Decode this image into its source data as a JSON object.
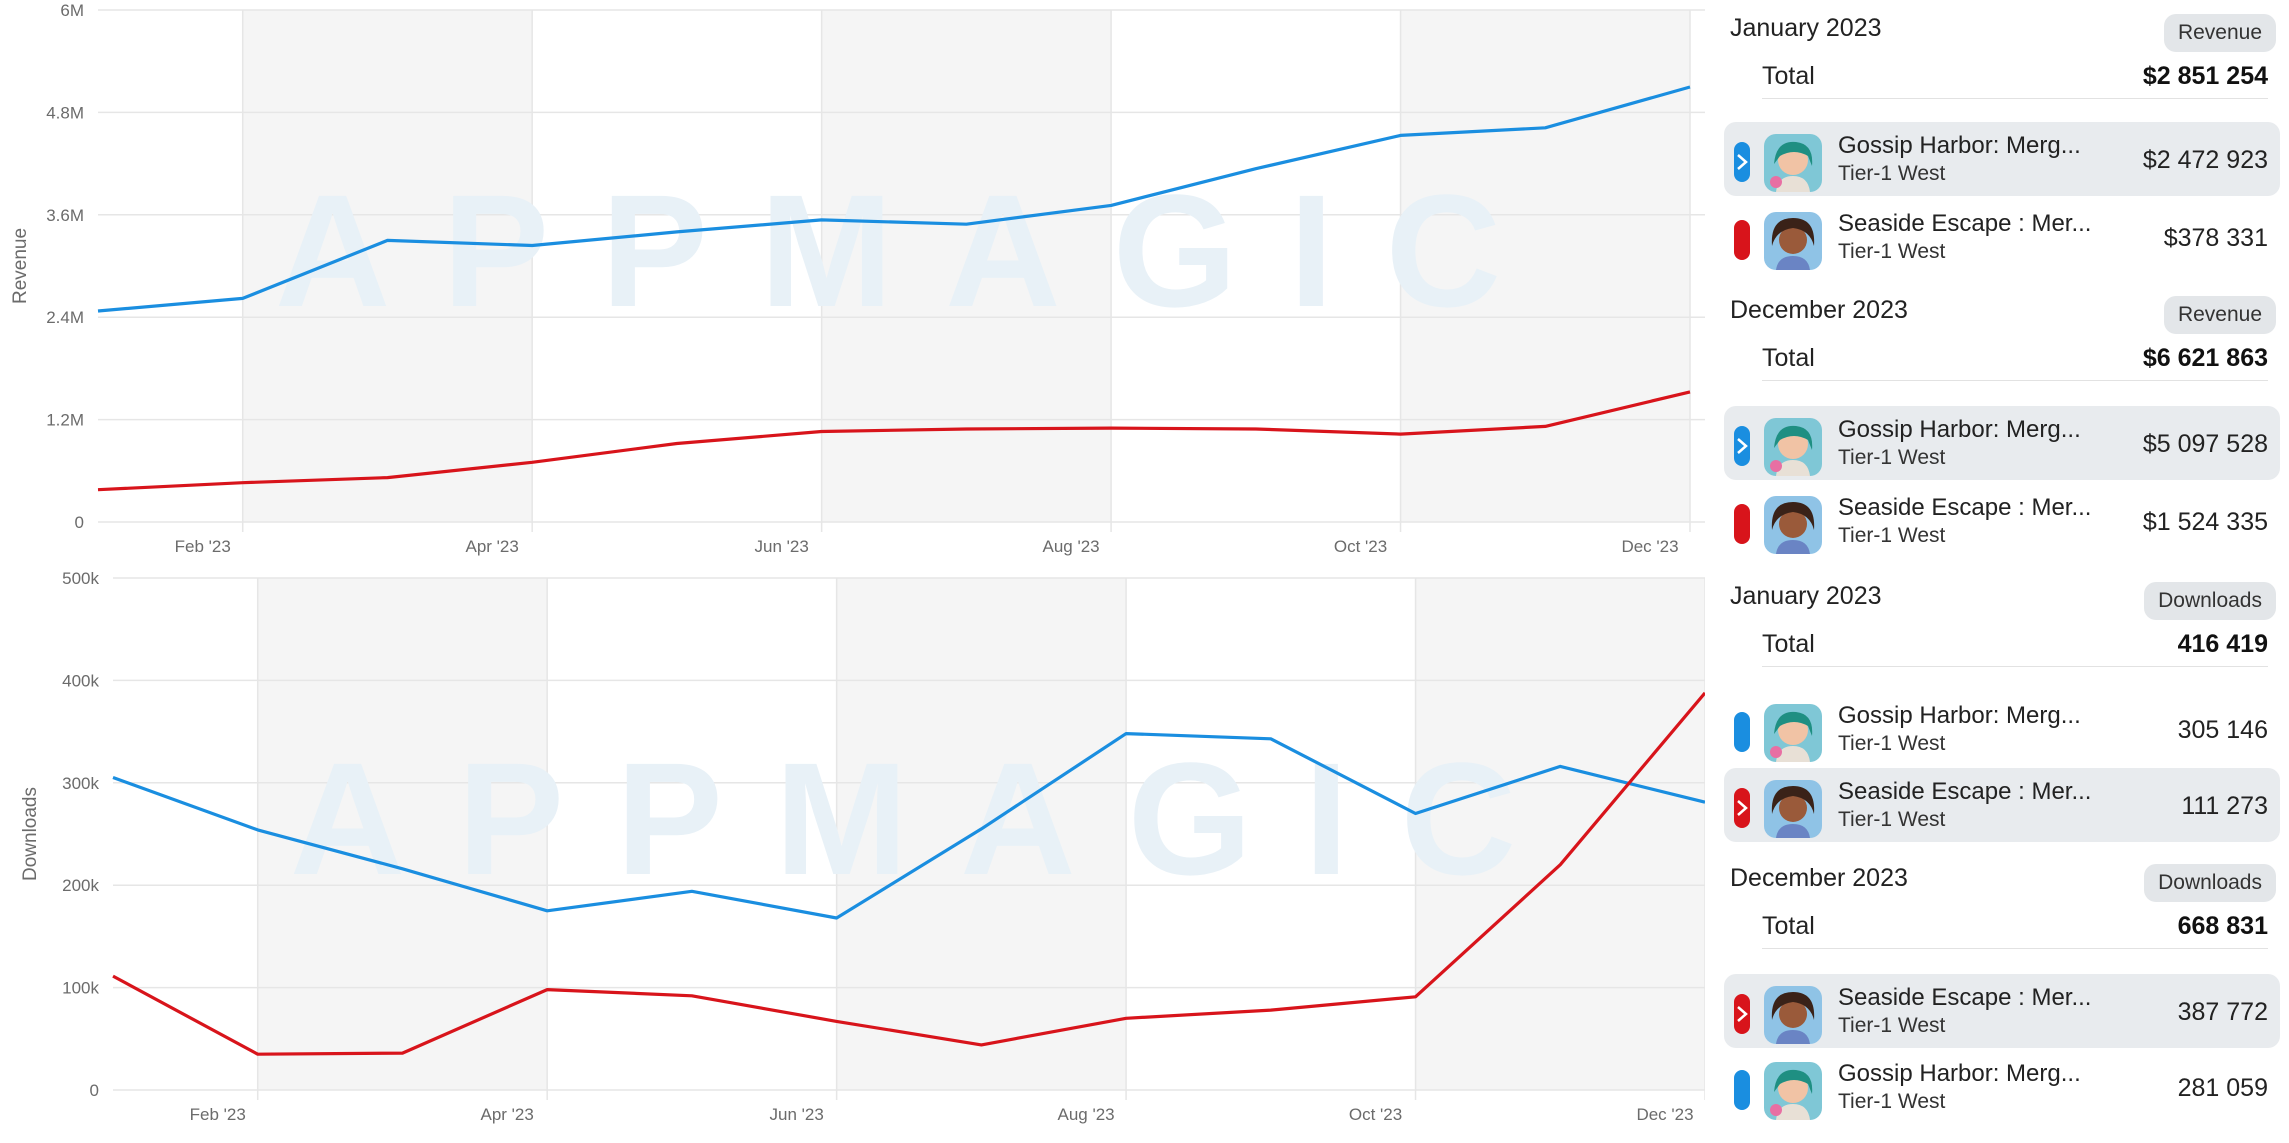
{
  "colors": {
    "gossip": "#1a8ee0",
    "seaside": "#d8141b",
    "band": "#f5f5f5",
    "grid": "#e6e6e6"
  },
  "chart_data": [
    {
      "type": "line",
      "ylabel": "Revenue",
      "categories": [
        "Jan '23",
        "Feb '23",
        "Mar '23",
        "Apr '23",
        "May '23",
        "Jun '23",
        "Jul '23",
        "Aug '23",
        "Sep '23",
        "Oct '23",
        "Nov '23",
        "Dec '23"
      ],
      "x_tick_labels": [
        "Feb '23",
        "Apr '23",
        "Jun '23",
        "Aug '23",
        "Oct '23",
        "Dec '23"
      ],
      "y_ticks": [
        "0",
        "1.2M",
        "2.4M",
        "3.6M",
        "4.8M",
        "6M"
      ],
      "ylim": [
        0,
        6000000
      ],
      "grid": true,
      "watermark": "APPMAGIC",
      "series": [
        {
          "app": "gossip",
          "values": [
            2472923,
            2620000,
            3300000,
            3240000,
            3400000,
            3540000,
            3490000,
            3710000,
            4140000,
            4530000,
            4620000,
            5097528
          ]
        },
        {
          "app": "seaside",
          "values": [
            378331,
            460000,
            520000,
            700000,
            920000,
            1060000,
            1090000,
            1100000,
            1090000,
            1030000,
            1120000,
            1524335
          ]
        }
      ]
    },
    {
      "type": "line",
      "ylabel": "Downloads",
      "categories": [
        "Jan '23",
        "Feb '23",
        "Mar '23",
        "Apr '23",
        "May '23",
        "Jun '23",
        "Jul '23",
        "Aug '23",
        "Sep '23",
        "Oct '23",
        "Nov '23",
        "Dec '23"
      ],
      "x_tick_labels": [
        "Feb '23",
        "Apr '23",
        "Jun '23",
        "Aug '23",
        "Oct '23",
        "Dec '23"
      ],
      "y_ticks": [
        "0",
        "100k",
        "200k",
        "300k",
        "400k",
        "500k"
      ],
      "ylim": [
        0,
        500000
      ],
      "grid": true,
      "watermark": "APPMAGIC",
      "series": [
        {
          "app": "gossip",
          "values": [
            305146,
            254000,
            216000,
            175000,
            194000,
            168000,
            255000,
            348000,
            343000,
            270000,
            316000,
            281059
          ]
        },
        {
          "app": "seaside",
          "values": [
            111273,
            35000,
            36000,
            98000,
            92000,
            67000,
            44000,
            70000,
            78000,
            91000,
            220000,
            387772
          ]
        }
      ]
    }
  ],
  "panel": {
    "sections": [
      {
        "title": "January 2023",
        "badge": "Revenue",
        "total_label": "Total",
        "total_value": "$2 851 254",
        "rows": [
          {
            "app": "gossip",
            "name": "Gossip Harbor: Merg...",
            "region": "Tier-1 West",
            "value": "$2 472 923",
            "selected": true
          },
          {
            "app": "seaside",
            "name": "Seaside Escape : Mer...",
            "region": "Tier-1 West",
            "value": "$378 331",
            "selected": false
          }
        ]
      },
      {
        "title": "December 2023",
        "badge": "Revenue",
        "total_label": "Total",
        "total_value": "$6 621 863",
        "rows": [
          {
            "app": "gossip",
            "name": "Gossip Harbor: Merg...",
            "region": "Tier-1 West",
            "value": "$5 097 528",
            "selected": true
          },
          {
            "app": "seaside",
            "name": "Seaside Escape : Mer...",
            "region": "Tier-1 West",
            "value": "$1 524 335",
            "selected": false
          }
        ]
      },
      {
        "title": "January 2023",
        "badge": "Downloads",
        "total_label": "Total",
        "total_value": "416 419",
        "rows": [
          {
            "app": "gossip",
            "name": "Gossip Harbor: Merg...",
            "region": "Tier-1 West",
            "value": "305 146",
            "selected": false
          },
          {
            "app": "seaside",
            "name": "Seaside Escape : Mer...",
            "region": "Tier-1 West",
            "value": "111 273",
            "selected": true
          }
        ]
      },
      {
        "title": "December 2023",
        "badge": "Downloads",
        "total_label": "Total",
        "total_value": "668 831",
        "rows": [
          {
            "app": "seaside",
            "name": "Seaside Escape : Mer...",
            "region": "Tier-1 West",
            "value": "387 772",
            "selected": true
          },
          {
            "app": "gossip",
            "name": "Gossip Harbor: Merg...",
            "region": "Tier-1 West",
            "value": "281 059",
            "selected": false
          }
        ]
      }
    ]
  }
}
